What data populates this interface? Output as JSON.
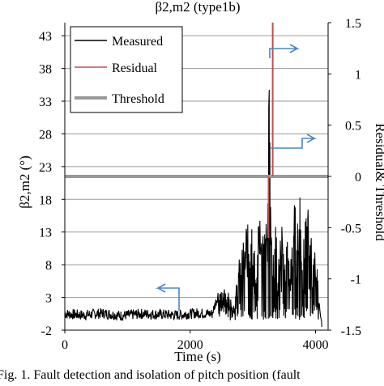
{
  "chart_data": {
    "type": "line",
    "title": "β2,m2 (type1b)",
    "xlabel": "Time (s)",
    "ylabel": "β2,m2 (°)",
    "y2label": "Residual& Threshold",
    "xlim": [
      0,
      4200
    ],
    "ylim": [
      -2,
      45
    ],
    "y2lim": [
      -1.5,
      1.5
    ],
    "x_ticks": [
      0,
      2000,
      4000
    ],
    "y_ticks": [
      -2,
      3,
      8,
      13,
      18,
      23,
      28,
      33,
      38,
      43
    ],
    "y2_ticks": [
      -1.5,
      -1,
      -0.5,
      0,
      0.5,
      1,
      1.5
    ],
    "y2_tick_labels": [
      "-1.5",
      "-1",
      "-0.5",
      "0",
      "0.5",
      "1",
      "1.5"
    ],
    "grid": "horizontal",
    "legend_position": "top-left",
    "series": [
      {
        "name": "Measured",
        "axis": "left",
        "color": "#000000",
        "x": [
          0,
          300,
          600,
          900,
          1200,
          1500,
          1800,
          2100,
          2350,
          2450,
          2550,
          2700,
          2800,
          2900,
          3000,
          3050,
          3100,
          3150,
          3200,
          3240,
          3260,
          3300,
          3350,
          3400,
          3450,
          3500,
          3550,
          3600,
          3650,
          3700,
          3750,
          3800,
          3850,
          3900,
          3950,
          4000,
          4050,
          4100
        ],
        "values": [
          0.5,
          0.3,
          0.6,
          0.2,
          0.5,
          0.4,
          0.3,
          0.6,
          0.5,
          3.5,
          4.5,
          2.0,
          9.5,
          14.0,
          15.5,
          5.0,
          17.5,
          11.0,
          12.5,
          19.0,
          40.0,
          12.0,
          16.0,
          6.5,
          14.5,
          9.0,
          13.0,
          8.5,
          17.0,
          14.0,
          19.5,
          10.0,
          14.5,
          20.0,
          8.0,
          13.0,
          3.0,
          -1.5
        ]
      },
      {
        "name": "Residual",
        "axis": "right",
        "color": "#c0504d",
        "x": [
          3200,
          3300
        ],
        "values": [
          -0.6,
          1.5
        ]
      },
      {
        "name": "Threshold",
        "axis": "right",
        "color": "#999999",
        "x": [
          0,
          4200
        ],
        "values": [
          0,
          0
        ]
      }
    ]
  },
  "caption": "Fig. 1. Fault detection and isolation of pitch position (fault",
  "colors": {
    "arrow": "#4a86c8"
  }
}
